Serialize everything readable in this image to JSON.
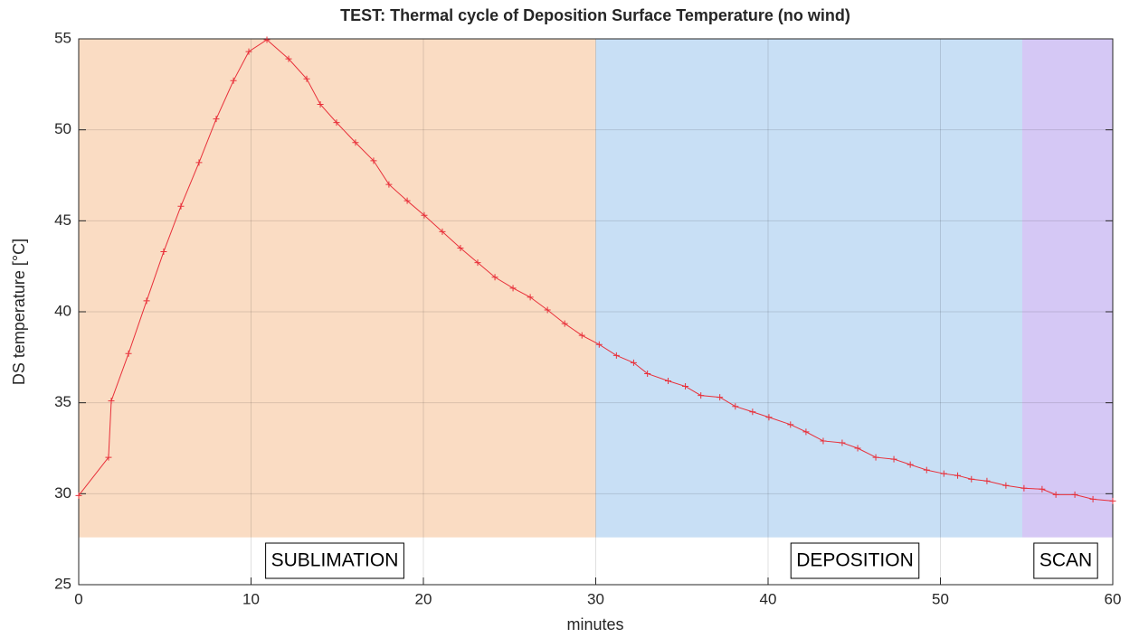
{
  "chart_data": {
    "type": "line",
    "title": "TEST:  Thermal cycle of Deposition Surface  Temperature  (no wind)",
    "xlabel": "minutes",
    "ylabel": "DS temperature [°C]",
    "xlim": [
      0,
      60
    ],
    "xticks": [
      0,
      10,
      20,
      30,
      40,
      50,
      60
    ],
    "ylim": [
      25,
      55
    ],
    "yticks": [
      25,
      30,
      35,
      40,
      45,
      50,
      55
    ],
    "grid": true,
    "bands": [
      {
        "label": "SUBLIMATION",
        "x0": 0,
        "x1": 30,
        "y0": 27.6,
        "color": "#fadcc3"
      },
      {
        "label": "DEPOSITION",
        "x0": 30,
        "x1": 54.75,
        "y0": 27.6,
        "color": "#c8dff5"
      },
      {
        "label": "SCAN",
        "x0": 54.75,
        "x1": 60,
        "y0": 27.6,
        "color": "#d5c8f5"
      }
    ],
    "series": [
      {
        "color": "#e8303a",
        "x": [
          0,
          1.73,
          1.89,
          2.89,
          3.94,
          4.93,
          5.93,
          6.98,
          7.98,
          8.98,
          9.87,
          10.92,
          12.18,
          13.23,
          14.02,
          14.96,
          16.06,
          17.11,
          18.0,
          19.06,
          20.05,
          21.1,
          22.15,
          23.15,
          24.15,
          25.2,
          26.2,
          27.2,
          28.2,
          29.2,
          30.2,
          31.2,
          32.2,
          33.0,
          34.2,
          35.2,
          36.1,
          37.2,
          38.1,
          39.1,
          40.05,
          41.3,
          42.2,
          43.2,
          44.3,
          45.2,
          46.25,
          47.3,
          48.25,
          49.2,
          50.2,
          51.0,
          51.8,
          52.7,
          53.8,
          54.85,
          55.9,
          56.7,
          57.8,
          58.85,
          60
        ],
        "values": [
          29.9,
          32.0,
          35.1,
          37.7,
          40.6,
          43.3,
          45.8,
          48.2,
          50.6,
          52.7,
          54.3,
          54.95,
          53.9,
          52.8,
          51.4,
          50.4,
          49.3,
          48.3,
          47.0,
          46.1,
          45.3,
          44.4,
          43.5,
          42.7,
          41.9,
          41.3,
          40.8,
          40.1,
          39.35,
          38.7,
          38.2,
          37.6,
          37.2,
          36.6,
          36.2,
          35.9,
          35.4,
          35.3,
          34.8,
          34.5,
          34.2,
          33.8,
          33.4,
          32.9,
          32.8,
          32.5,
          32.0,
          31.9,
          31.6,
          31.3,
          31.1,
          31.0,
          30.8,
          30.7,
          30.45,
          30.3,
          30.25,
          29.95,
          29.95,
          29.7,
          29.6
        ]
      }
    ]
  }
}
